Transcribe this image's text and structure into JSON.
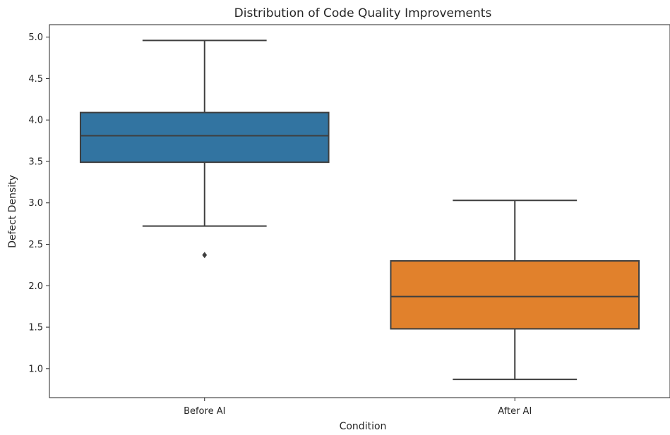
{
  "chart_data": {
    "type": "box",
    "title": "Distribution of Code Quality Improvements",
    "xlabel": "Condition",
    "ylabel": "Defect Density",
    "ylim": [
      0.65,
      5.15
    ],
    "yticks": [
      "1.0",
      "1.5",
      "2.0",
      "2.5",
      "3.0",
      "3.5",
      "4.0",
      "4.5",
      "5.0"
    ],
    "grid": false,
    "categories": [
      "Before AI",
      "After AI"
    ],
    "boxes": [
      {
        "category": "Before AI",
        "color": "#3274a1",
        "whisker_low": 2.72,
        "q1": 3.49,
        "median": 3.81,
        "q3": 4.09,
        "whisker_high": 4.96,
        "outliers": [
          2.37
        ]
      },
      {
        "category": "After AI",
        "color": "#e1812c",
        "whisker_low": 0.87,
        "q1": 1.48,
        "median": 1.87,
        "q3": 2.3,
        "whisker_high": 3.03,
        "outliers": []
      }
    ]
  }
}
